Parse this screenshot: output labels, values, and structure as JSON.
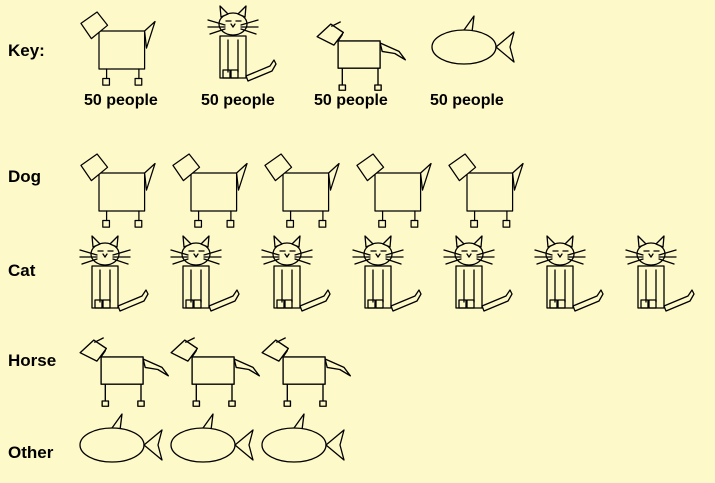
{
  "chart_data": {
    "type": "pictogram",
    "key": {
      "label": "Key:",
      "symbols": [
        {
          "icon": "dog-icon",
          "value_text": "50 people"
        },
        {
          "icon": "cat-icon",
          "value_text": "50 people"
        },
        {
          "icon": "horse-icon",
          "value_text": "50 people"
        },
        {
          "icon": "fish-icon",
          "value_text": "50 people"
        }
      ],
      "people_per_symbol": 50
    },
    "categories": [
      "Dog",
      "Cat",
      "Horse",
      "Other"
    ],
    "icons": [
      "dog-icon",
      "cat-icon",
      "horse-icon",
      "fish-icon"
    ],
    "symbol_counts": [
      5,
      7,
      3,
      3
    ],
    "values": [
      250,
      350,
      150,
      150
    ]
  }
}
